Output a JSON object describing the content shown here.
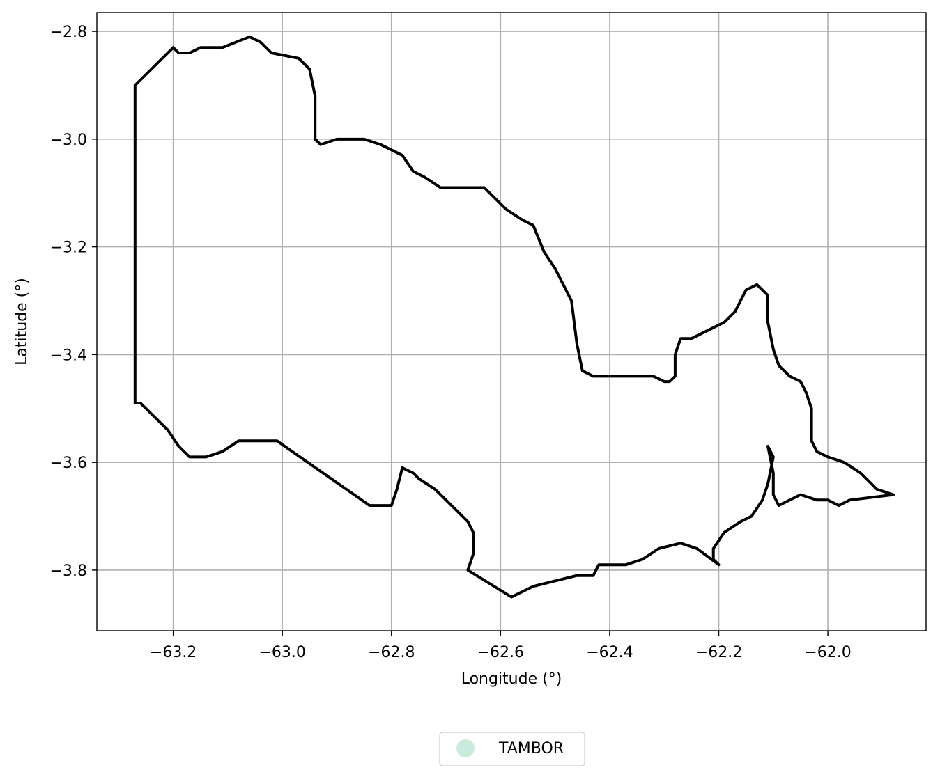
{
  "chart_data": {
    "type": "map",
    "xlabel": "Longitude (°)",
    "ylabel": "Latitude (°)",
    "xlim": [
      -63.34,
      -61.82
    ],
    "ylim": [
      -3.9125,
      -2.765
    ],
    "grid": true,
    "x_ticks": [
      {
        "value": -63.2,
        "label": "−63.2"
      },
      {
        "value": -63.0,
        "label": "−63.0"
      },
      {
        "value": -62.8,
        "label": "−62.8"
      },
      {
        "value": -62.6,
        "label": "−62.6"
      },
      {
        "value": -62.4,
        "label": "−62.4"
      },
      {
        "value": -62.2,
        "label": "−62.2"
      },
      {
        "value": -62.0,
        "label": "−62.0"
      }
    ],
    "y_ticks": [
      {
        "value": -2.8,
        "label": "−2.8"
      },
      {
        "value": -3.0,
        "label": "−3.0"
      },
      {
        "value": -3.2,
        "label": "−3.2"
      },
      {
        "value": -3.4,
        "label": "−3.4"
      },
      {
        "value": -3.6,
        "label": "−3.6"
      },
      {
        "value": -3.8,
        "label": "−3.8"
      }
    ],
    "legend": {
      "placement": "bottom-center",
      "entries": [
        {
          "label": "TAMBOR",
          "color": "#c9ebdb"
        }
      ]
    },
    "series": [
      {
        "name": "TAMBOR",
        "color": "#000000",
        "boundary": [
          [
            -63.27,
            -2.9
          ],
          [
            -63.2,
            -2.83
          ],
          [
            -63.19,
            -2.84
          ],
          [
            -63.17,
            -2.84
          ],
          [
            -63.15,
            -2.83
          ],
          [
            -63.11,
            -2.83
          ],
          [
            -63.06,
            -2.81
          ],
          [
            -63.04,
            -2.82
          ],
          [
            -63.02,
            -2.84
          ],
          [
            -62.97,
            -2.85
          ],
          [
            -62.95,
            -2.87
          ],
          [
            -62.94,
            -2.92
          ],
          [
            -62.94,
            -2.96
          ],
          [
            -62.94,
            -3.0
          ],
          [
            -62.93,
            -3.01
          ],
          [
            -62.9,
            -3.0
          ],
          [
            -62.87,
            -3.0
          ],
          [
            -62.85,
            -3.0
          ],
          [
            -62.82,
            -3.01
          ],
          [
            -62.8,
            -3.02
          ],
          [
            -62.78,
            -3.03
          ],
          [
            -62.76,
            -3.06
          ],
          [
            -62.74,
            -3.07
          ],
          [
            -62.71,
            -3.09
          ],
          [
            -62.68,
            -3.09
          ],
          [
            -62.65,
            -3.09
          ],
          [
            -62.63,
            -3.09
          ],
          [
            -62.61,
            -3.11
          ],
          [
            -62.59,
            -3.13
          ],
          [
            -62.56,
            -3.15
          ],
          [
            -62.54,
            -3.16
          ],
          [
            -62.52,
            -3.21
          ],
          [
            -62.5,
            -3.24
          ],
          [
            -62.47,
            -3.3
          ],
          [
            -62.46,
            -3.38
          ],
          [
            -62.45,
            -3.43
          ],
          [
            -62.43,
            -3.44
          ],
          [
            -62.4,
            -3.44
          ],
          [
            -62.36,
            -3.44
          ],
          [
            -62.32,
            -3.44
          ],
          [
            -62.3,
            -3.45
          ],
          [
            -62.29,
            -3.45
          ],
          [
            -62.28,
            -3.44
          ],
          [
            -62.28,
            -3.4
          ],
          [
            -62.27,
            -3.37
          ],
          [
            -62.25,
            -3.37
          ],
          [
            -62.21,
            -3.35
          ],
          [
            -62.19,
            -3.34
          ],
          [
            -62.17,
            -3.32
          ],
          [
            -62.15,
            -3.28
          ],
          [
            -62.13,
            -3.27
          ],
          [
            -62.11,
            -3.29
          ],
          [
            -62.11,
            -3.34
          ],
          [
            -62.1,
            -3.39
          ],
          [
            -62.09,
            -3.42
          ],
          [
            -62.07,
            -3.44
          ],
          [
            -62.05,
            -3.45
          ],
          [
            -62.04,
            -3.47
          ],
          [
            -62.03,
            -3.5
          ],
          [
            -62.03,
            -3.56
          ],
          [
            -62.02,
            -3.58
          ],
          [
            -62.0,
            -3.59
          ],
          [
            -61.97,
            -3.6
          ],
          [
            -61.94,
            -3.62
          ],
          [
            -61.91,
            -3.65
          ],
          [
            -61.88,
            -3.66
          ],
          [
            -61.96,
            -3.67
          ],
          [
            -61.98,
            -3.68
          ],
          [
            -62.0,
            -3.67
          ],
          [
            -62.02,
            -3.67
          ],
          [
            -62.05,
            -3.66
          ],
          [
            -62.07,
            -3.67
          ],
          [
            -62.09,
            -3.68
          ],
          [
            -62.1,
            -3.66
          ],
          [
            -62.1,
            -3.62
          ],
          [
            -62.11,
            -3.57
          ],
          [
            -62.1,
            -3.59
          ],
          [
            -62.11,
            -3.64
          ],
          [
            -62.12,
            -3.67
          ],
          [
            -62.14,
            -3.7
          ],
          [
            -62.16,
            -3.71
          ],
          [
            -62.19,
            -3.73
          ],
          [
            -62.21,
            -3.76
          ],
          [
            -62.21,
            -3.78
          ],
          [
            -62.2,
            -3.79
          ],
          [
            -62.24,
            -3.76
          ],
          [
            -62.27,
            -3.75
          ],
          [
            -62.31,
            -3.76
          ],
          [
            -62.34,
            -3.78
          ],
          [
            -62.37,
            -3.79
          ],
          [
            -62.4,
            -3.79
          ],
          [
            -62.42,
            -3.79
          ],
          [
            -62.43,
            -3.81
          ],
          [
            -62.46,
            -3.81
          ],
          [
            -62.5,
            -3.82
          ],
          [
            -62.54,
            -3.83
          ],
          [
            -62.58,
            -3.85
          ],
          [
            -62.66,
            -3.8
          ],
          [
            -62.65,
            -3.77
          ],
          [
            -62.65,
            -3.73
          ],
          [
            -62.66,
            -3.71
          ],
          [
            -62.69,
            -3.68
          ],
          [
            -62.72,
            -3.65
          ],
          [
            -62.75,
            -3.63
          ],
          [
            -62.76,
            -3.62
          ],
          [
            -62.78,
            -3.61
          ],
          [
            -62.79,
            -3.65
          ],
          [
            -62.8,
            -3.68
          ],
          [
            -62.84,
            -3.68
          ],
          [
            -63.01,
            -3.56
          ],
          [
            -63.03,
            -3.56
          ],
          [
            -63.05,
            -3.56
          ],
          [
            -63.08,
            -3.56
          ],
          [
            -63.11,
            -3.58
          ],
          [
            -63.14,
            -3.59
          ],
          [
            -63.17,
            -3.59
          ],
          [
            -63.19,
            -3.57
          ],
          [
            -63.21,
            -3.54
          ],
          [
            -63.24,
            -3.51
          ],
          [
            -63.26,
            -3.49
          ],
          [
            -63.27,
            -3.49
          ],
          [
            -63.27,
            -2.9
          ]
        ]
      }
    ]
  }
}
